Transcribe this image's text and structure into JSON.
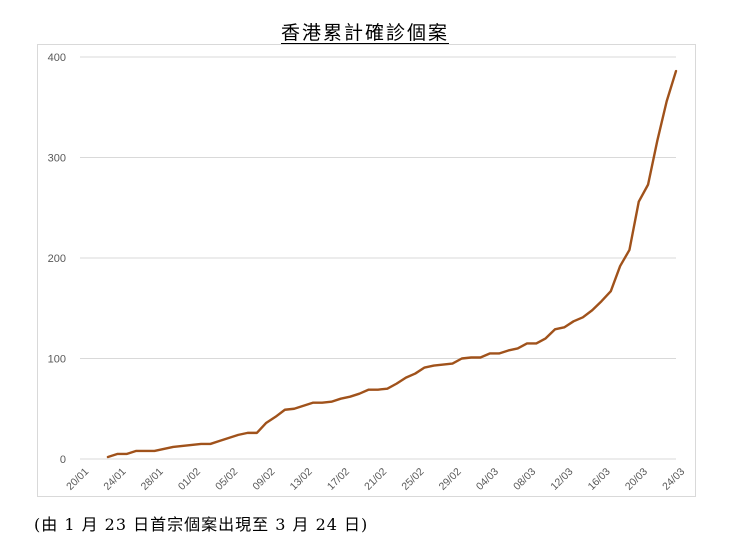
{
  "title": "香港累計確診個案",
  "caption": "(由 1 月 23 日首宗個案出現至 3 月 24 日)",
  "colors": {
    "line": "#a0521b",
    "grid": "#d9d9d9",
    "tick_text": "#595959"
  },
  "chart_data": {
    "type": "line",
    "title": "香港累計確診個案",
    "xlabel": "",
    "ylabel": "",
    "ylim": [
      0,
      400
    ],
    "yticks": [
      0,
      100,
      200,
      300,
      400
    ],
    "grid": true,
    "legend": "none",
    "xtick_labels": [
      "20/01",
      "24/01",
      "28/01",
      "01/02",
      "05/02",
      "09/02",
      "13/02",
      "17/02",
      "21/02",
      "25/02",
      "29/02",
      "04/03",
      "08/03",
      "12/03",
      "16/03",
      "20/03",
      "24/03"
    ],
    "x": [
      "20/01",
      "21/01",
      "22/01",
      "23/01",
      "24/01",
      "25/01",
      "26/01",
      "27/01",
      "28/01",
      "29/01",
      "30/01",
      "31/01",
      "01/02",
      "02/02",
      "03/02",
      "04/02",
      "05/02",
      "06/02",
      "07/02",
      "08/02",
      "09/02",
      "10/02",
      "11/02",
      "12/02",
      "13/02",
      "14/02",
      "15/02",
      "16/02",
      "17/02",
      "18/02",
      "19/02",
      "20/02",
      "21/02",
      "22/02",
      "23/02",
      "24/02",
      "25/02",
      "26/02",
      "27/02",
      "28/02",
      "29/02",
      "01/03",
      "02/03",
      "03/03",
      "04/03",
      "05/03",
      "06/03",
      "07/03",
      "08/03",
      "09/03",
      "10/03",
      "11/03",
      "12/03",
      "13/03",
      "14/03",
      "15/03",
      "16/03",
      "17/03",
      "18/03",
      "19/03",
      "20/03",
      "21/03",
      "22/03",
      "23/03",
      "24/03"
    ],
    "series": [
      {
        "values": [
          null,
          null,
          null,
          2,
          5,
          5,
          8,
          8,
          8,
          10,
          12,
          13,
          14,
          15,
          15,
          18,
          21,
          24,
          26,
          26,
          36,
          42,
          49,
          50,
          53,
          56,
          56,
          57,
          60,
          62,
          65,
          69,
          69,
          70,
          75,
          81,
          85,
          91,
          93,
          94,
          95,
          100,
          101,
          101,
          105,
          105,
          108,
          110,
          115,
          115,
          120,
          129,
          131,
          137,
          141,
          148,
          157,
          167,
          192,
          208,
          256,
          273,
          317,
          356,
          386
        ]
      }
    ]
  }
}
